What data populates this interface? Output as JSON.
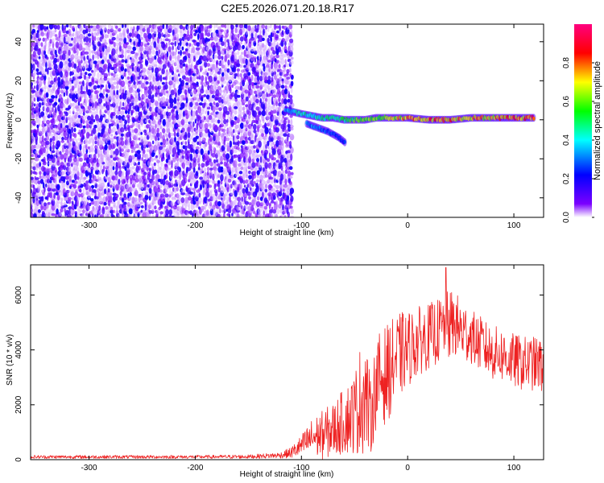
{
  "page_title": "C2E5.2026.071.20.18.R17",
  "chart_data": [
    {
      "type": "heatmap",
      "xlabel": "Height of straight line (km)",
      "ylabel": "Frequency (Hz)",
      "xlim": [
        -355,
        128
      ],
      "ylim": [
        -50,
        49
      ],
      "x_ticks": [
        -300,
        -200,
        -100,
        0,
        100
      ],
      "y_ticks": [
        -40,
        -20,
        0,
        20,
        40
      ],
      "x_tick_labels": [
        "-300",
        "-200",
        "-100",
        "0",
        "100"
      ],
      "y_tick_labels": [
        "-40",
        "-20",
        "0",
        "20",
        "40"
      ],
      "colorbar": {
        "label": "Normalized spectral amplitude",
        "range": [
          0,
          1
        ],
        "ticks": [
          0.0,
          0.2,
          0.4,
          0.6,
          0.8
        ],
        "tick_labels": [
          "0.0",
          "0.2",
          "0.4",
          "0.6",
          "0.8"
        ],
        "colors": [
          "#ffffff",
          "#7b00ff",
          "#0000ff",
          "#00ffff",
          "#00ff00",
          "#ffff00",
          "#ff0000",
          "#ff007f"
        ]
      },
      "noise_region": {
        "x_range": [
          -355,
          -108
        ],
        "freq_range": [
          -50,
          49
        ],
        "amplitude_range": [
          0.02,
          0.2
        ]
      },
      "ridge": [
        {
          "x": -115,
          "freq": 5,
          "amplitude": 0.35
        },
        {
          "x": -100,
          "freq": 3,
          "amplitude": 0.5
        },
        {
          "x": -90,
          "freq": 2,
          "amplitude": 0.45
        },
        {
          "x": -80,
          "freq": 1,
          "amplitude": 0.5
        },
        {
          "x": -70,
          "freq": 1,
          "amplitude": 0.55
        },
        {
          "x": -60,
          "freq": 0,
          "amplitude": 0.55
        },
        {
          "x": -50,
          "freq": 0,
          "amplitude": 0.6
        },
        {
          "x": -40,
          "freq": 0,
          "amplitude": 0.65
        },
        {
          "x": -30,
          "freq": 1,
          "amplitude": 0.65
        },
        {
          "x": -20,
          "freq": 1,
          "amplitude": 0.7
        },
        {
          "x": -10,
          "freq": 1,
          "amplitude": 0.75
        },
        {
          "x": 0,
          "freq": 1,
          "amplitude": 0.8
        },
        {
          "x": 20,
          "freq": 0,
          "amplitude": 0.85
        },
        {
          "x": 40,
          "freq": 0,
          "amplitude": 0.85
        },
        {
          "x": 60,
          "freq": 1,
          "amplitude": 0.8
        },
        {
          "x": 80,
          "freq": 1,
          "amplitude": 0.8
        },
        {
          "x": 100,
          "freq": 1,
          "amplitude": 0.85
        },
        {
          "x": 120,
          "freq": 1,
          "amplitude": 0.9
        }
      ],
      "branch": [
        {
          "x": -95,
          "freq": -2,
          "amplitude": 0.35
        },
        {
          "x": -85,
          "freq": -4,
          "amplitude": 0.35
        },
        {
          "x": -75,
          "freq": -6,
          "amplitude": 0.3
        },
        {
          "x": -65,
          "freq": -9,
          "amplitude": 0.3
        },
        {
          "x": -58,
          "freq": -12,
          "amplitude": 0.25
        }
      ]
    },
    {
      "type": "line",
      "xlabel": "Height of straight line (km)",
      "ylabel": "SNR (10 * v/v)",
      "xlim": [
        -355,
        128
      ],
      "ylim": [
        0,
        7100
      ],
      "x_ticks": [
        -300,
        -200,
        -100,
        0,
        100
      ],
      "y_ticks": [
        0,
        2000,
        4000,
        6000
      ],
      "x_tick_labels": [
        "-300",
        "-200",
        "-100",
        "0",
        "100"
      ],
      "y_tick_labels": [
        "0",
        "2000",
        "4000",
        "6000"
      ],
      "series": [
        {
          "color": "#ee2222",
          "x": [
            -355,
            -300,
            -250,
            -200,
            -150,
            -120,
            -110,
            -100,
            -90,
            -80,
            -70,
            -60,
            -50,
            -45,
            -40,
            -35,
            -30,
            -25,
            -20,
            -15,
            -10,
            -5,
            0,
            5,
            10,
            15,
            20,
            25,
            30,
            35,
            40,
            45,
            50,
            55,
            60,
            65,
            70,
            75,
            80,
            90,
            100,
            110,
            120,
            128
          ],
          "y": [
            100,
            100,
            100,
            100,
            110,
            160,
            250,
            500,
            800,
            900,
            1100,
            1400,
            1700,
            2100,
            2500,
            1500,
            2700,
            3000,
            3100,
            3400,
            3700,
            3900,
            4000,
            4200,
            4300,
            4400,
            4500,
            4600,
            4700,
            4800,
            4900,
            4900,
            4700,
            4600,
            4500,
            4300,
            4200,
            4000,
            3900,
            3800,
            3600,
            3500,
            3500,
            3400
          ],
          "spread": [
            60,
            60,
            60,
            60,
            70,
            110,
            200,
            400,
            700,
            900,
            1000,
            1200,
            1500,
            2000,
            2200,
            1400,
            1600,
            1800,
            1800,
            1700,
            1600,
            1500,
            1400,
            1300,
            1300,
            1200,
            1200,
            1200,
            1200,
            1300,
            1300,
            1200,
            1200,
            1100,
            1000,
            1000,
            1000,
            1000,
            1000,
            1000,
            1000,
            1000,
            1000,
            1000
          ],
          "peak": {
            "x": 36,
            "y": 7000
          }
        }
      ]
    }
  ]
}
